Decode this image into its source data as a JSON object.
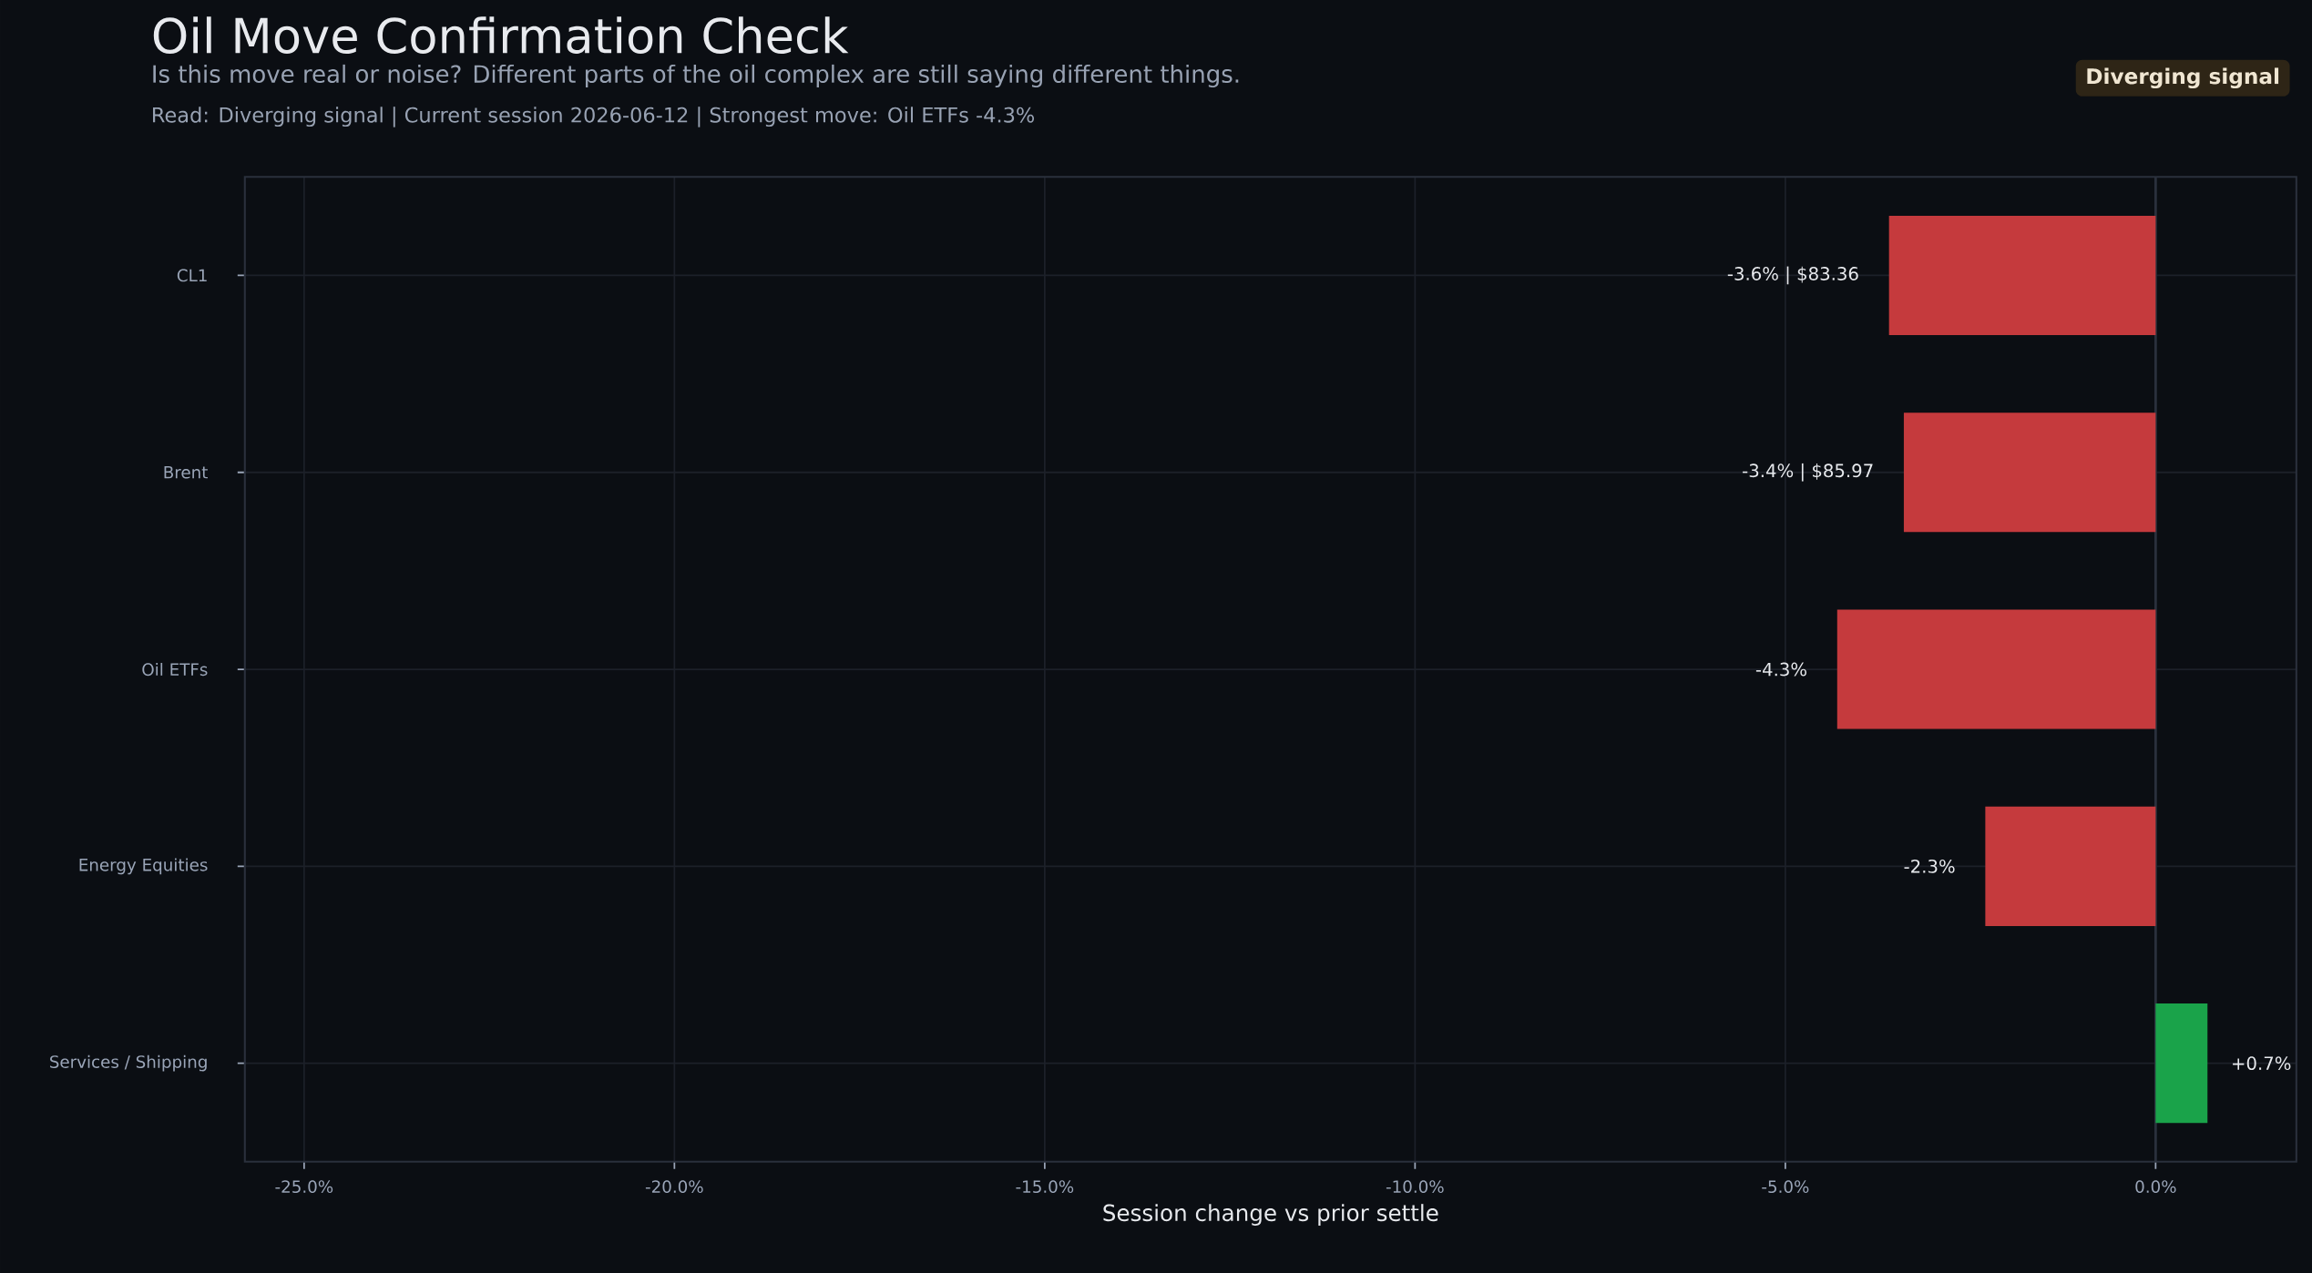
{
  "chart_data": {
    "type": "bar",
    "orientation": "horizontal",
    "title": "Oil Move Confirmation Check",
    "subtitle": "Is this move real or noise? Different parts of the oil complex are still saying different things.",
    "annotations": [
      "Read: Diverging signal  |  Current session 2026-06-12  |  Strongest move: Oil ETFs -4.3%",
      "Diverging signal"
    ],
    "xlabel": "Session change vs prior settle",
    "categories": [
      "CL1",
      "Brent",
      "Oil ETFs",
      "Energy Equities",
      "Services / Shipping"
    ],
    "values": [
      -3.6,
      -3.4,
      -4.3,
      -2.3,
      0.7
    ],
    "colors": [
      "#c53a3d",
      "#c53a3d",
      "#c53a3d",
      "#c53a3d",
      "#1aa34a"
    ],
    "value_labels": [
      "-3.6% | $83.36",
      "-3.4% | $85.97",
      "-4.3%",
      "-2.3%",
      "+0.7%"
    ],
    "xlim": [
      -25.8,
      1.9
    ],
    "xticks": [
      {
        "value": -25,
        "label": "-25.0%"
      },
      {
        "value": -20,
        "label": "-20.0%"
      },
      {
        "value": -15,
        "label": "-15.0%"
      },
      {
        "value": -10,
        "label": "-10.0%"
      },
      {
        "value": -5,
        "label": "-5.0%"
      },
      {
        "value": 0,
        "label": "0.0%"
      }
    ],
    "ref_lines": [
      {
        "axis": "x",
        "value": 0,
        "color": "#2a303c"
      }
    ],
    "grid": true
  }
}
